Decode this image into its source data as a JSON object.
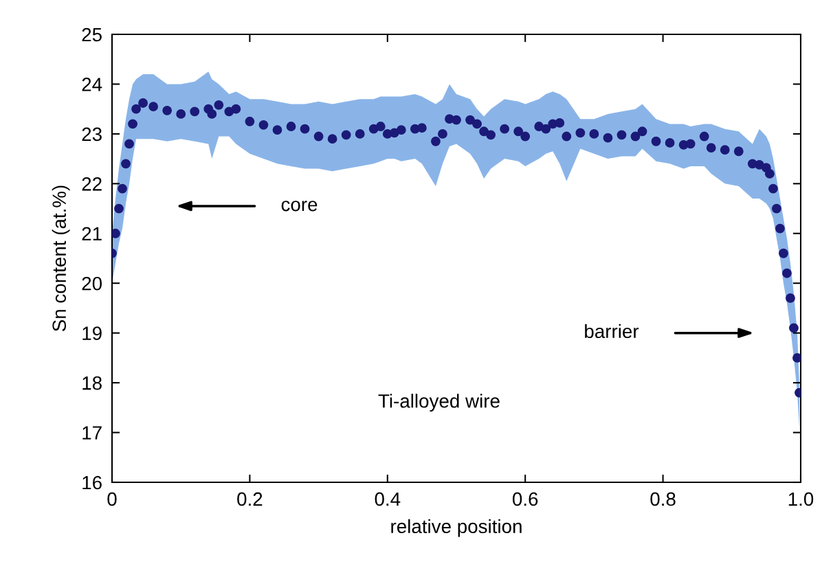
{
  "chart_data": {
    "type": "scatter",
    "xlabel": "relative position",
    "ylabel": "Sn content (at.%)",
    "xlim": [
      0,
      1
    ],
    "xticks": [
      0,
      0.2,
      0.4,
      0.6,
      0.8,
      {
        "value": 1,
        "label": "1.0"
      }
    ],
    "ylim": [
      16,
      25
    ],
    "yticks": [
      16,
      17,
      18,
      19,
      20,
      21,
      22,
      23,
      24,
      25
    ],
    "grid": false,
    "legend": false,
    "marker": "circle",
    "x": [
      0,
      0.005,
      0.01,
      0.015,
      0.02,
      0.025,
      0.03,
      0.035,
      0.045,
      0.06,
      0.08,
      0.1,
      0.12,
      0.14,
      0.145,
      0.155,
      0.17,
      0.18,
      0.2,
      0.22,
      0.24,
      0.26,
      0.28,
      0.3,
      0.32,
      0.34,
      0.36,
      0.38,
      0.39,
      0.4,
      0.41,
      0.42,
      0.44,
      0.45,
      0.47,
      0.48,
      0.49,
      0.5,
      0.52,
      0.53,
      0.54,
      0.55,
      0.57,
      0.59,
      0.6,
      0.62,
      0.63,
      0.64,
      0.65,
      0.66,
      0.68,
      0.7,
      0.72,
      0.74,
      0.76,
      0.77,
      0.79,
      0.81,
      0.83,
      0.84,
      0.86,
      0.87,
      0.89,
      0.91,
      0.93,
      0.94,
      0.95,
      0.955,
      0.96,
      0.965,
      0.97,
      0.975,
      0.98,
      0.985,
      0.99,
      0.995,
      0.998
    ],
    "series": [
      {
        "color": "#1c1a78",
        "values": [
          20.6,
          21.0,
          21.5,
          21.9,
          22.4,
          22.8,
          23.2,
          23.5,
          23.62,
          23.55,
          23.47,
          23.4,
          23.45,
          23.5,
          23.4,
          23.58,
          23.45,
          23.5,
          23.25,
          23.18,
          23.08,
          23.15,
          23.1,
          22.95,
          22.9,
          22.98,
          23.0,
          23.1,
          23.15,
          23.0,
          23.02,
          23.08,
          23.1,
          23.12,
          22.85,
          23.0,
          23.3,
          23.28,
          23.28,
          23.2,
          23.05,
          22.98,
          23.1,
          23.05,
          22.95,
          23.15,
          23.1,
          23.2,
          23.22,
          22.95,
          23.02,
          23.0,
          22.92,
          22.98,
          22.95,
          23.05,
          22.85,
          22.82,
          22.78,
          22.8,
          22.95,
          22.72,
          22.68,
          22.65,
          22.4,
          22.38,
          22.32,
          22.2,
          21.9,
          21.5,
          21.1,
          20.6,
          20.2,
          19.7,
          19.1,
          18.5,
          17.8
        ],
        "upper": [
          21.0,
          21.7,
          22.3,
          22.8,
          23.3,
          23.7,
          24.0,
          24.1,
          24.2,
          24.2,
          24.0,
          24.0,
          24.05,
          24.25,
          24.1,
          24.0,
          23.8,
          23.85,
          23.7,
          23.7,
          23.65,
          23.6,
          23.6,
          23.65,
          23.6,
          23.65,
          23.7,
          23.7,
          23.75,
          23.75,
          23.75,
          23.75,
          23.8,
          23.75,
          23.6,
          23.7,
          24.0,
          23.8,
          23.7,
          23.5,
          23.35,
          23.5,
          23.7,
          23.65,
          23.6,
          23.7,
          23.8,
          23.85,
          23.8,
          23.7,
          23.3,
          23.3,
          23.4,
          23.45,
          23.5,
          23.6,
          23.3,
          23.2,
          23.2,
          23.15,
          23.2,
          23.2,
          23.1,
          23.05,
          22.8,
          23.1,
          22.95,
          22.8,
          22.5,
          22.1,
          21.7,
          21.3,
          20.9,
          20.4,
          19.8,
          19.0,
          18.0
        ],
        "lower": [
          20.0,
          20.4,
          20.8,
          21.1,
          21.6,
          22.0,
          22.5,
          22.9,
          22.9,
          22.9,
          22.85,
          22.9,
          22.85,
          22.8,
          22.5,
          22.95,
          22.95,
          22.8,
          22.6,
          22.5,
          22.4,
          22.35,
          22.3,
          22.3,
          22.25,
          22.3,
          22.35,
          22.4,
          22.45,
          22.5,
          22.5,
          22.45,
          22.5,
          22.4,
          21.95,
          22.4,
          22.75,
          22.8,
          22.6,
          22.4,
          22.1,
          22.3,
          22.5,
          22.45,
          22.35,
          22.5,
          22.6,
          22.65,
          22.4,
          22.05,
          22.7,
          22.6,
          22.5,
          22.55,
          22.55,
          22.7,
          22.45,
          22.4,
          22.3,
          22.35,
          22.35,
          22.2,
          22.0,
          21.95,
          21.7,
          21.7,
          21.6,
          21.5,
          21.3,
          20.9,
          20.5,
          20.0,
          19.6,
          19.1,
          18.5,
          17.8,
          17.1
        ]
      }
    ],
    "annotations": [
      "core",
      "barrier",
      "Ti-alloyed wire"
    ]
  }
}
